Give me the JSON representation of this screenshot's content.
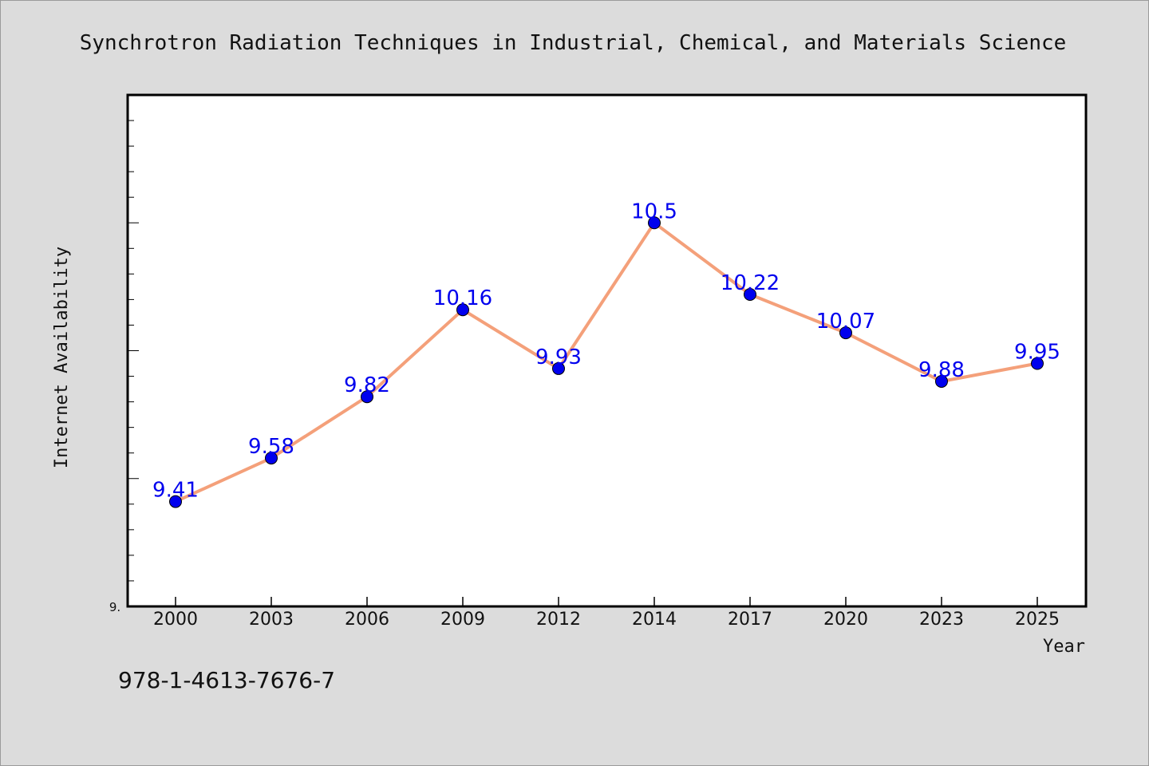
{
  "chart_data": {
    "type": "line",
    "title": "Synchrotron Radiation Techniques in Industrial, Chemical, and Materials Science",
    "xlabel": "Year",
    "ylabel": "Internet Availability",
    "categories": [
      "2000",
      "2003",
      "2006",
      "2009",
      "2012",
      "2014",
      "2017",
      "2020",
      "2023",
      "2025"
    ],
    "series": [
      {
        "values": [
          9.41,
          9.58,
          9.82,
          10.16,
          9.93,
          10.5,
          10.22,
          10.07,
          9.88,
          9.95
        ]
      }
    ],
    "data_labels": [
      "9.41",
      "9.58",
      "9.82",
      "10.16",
      "9.93",
      "10.5",
      "10.22",
      "10.07",
      "9.88",
      "9.95"
    ],
    "y_tick_labels": [
      "9."
    ],
    "ylim": [
      9.0,
      11.0
    ],
    "grid": false,
    "line_color": "#f4a07a",
    "marker_color": "#0000ee",
    "label_color": "#0000ee"
  },
  "footer": {
    "isbn": "978-1-4613-7676-7"
  }
}
